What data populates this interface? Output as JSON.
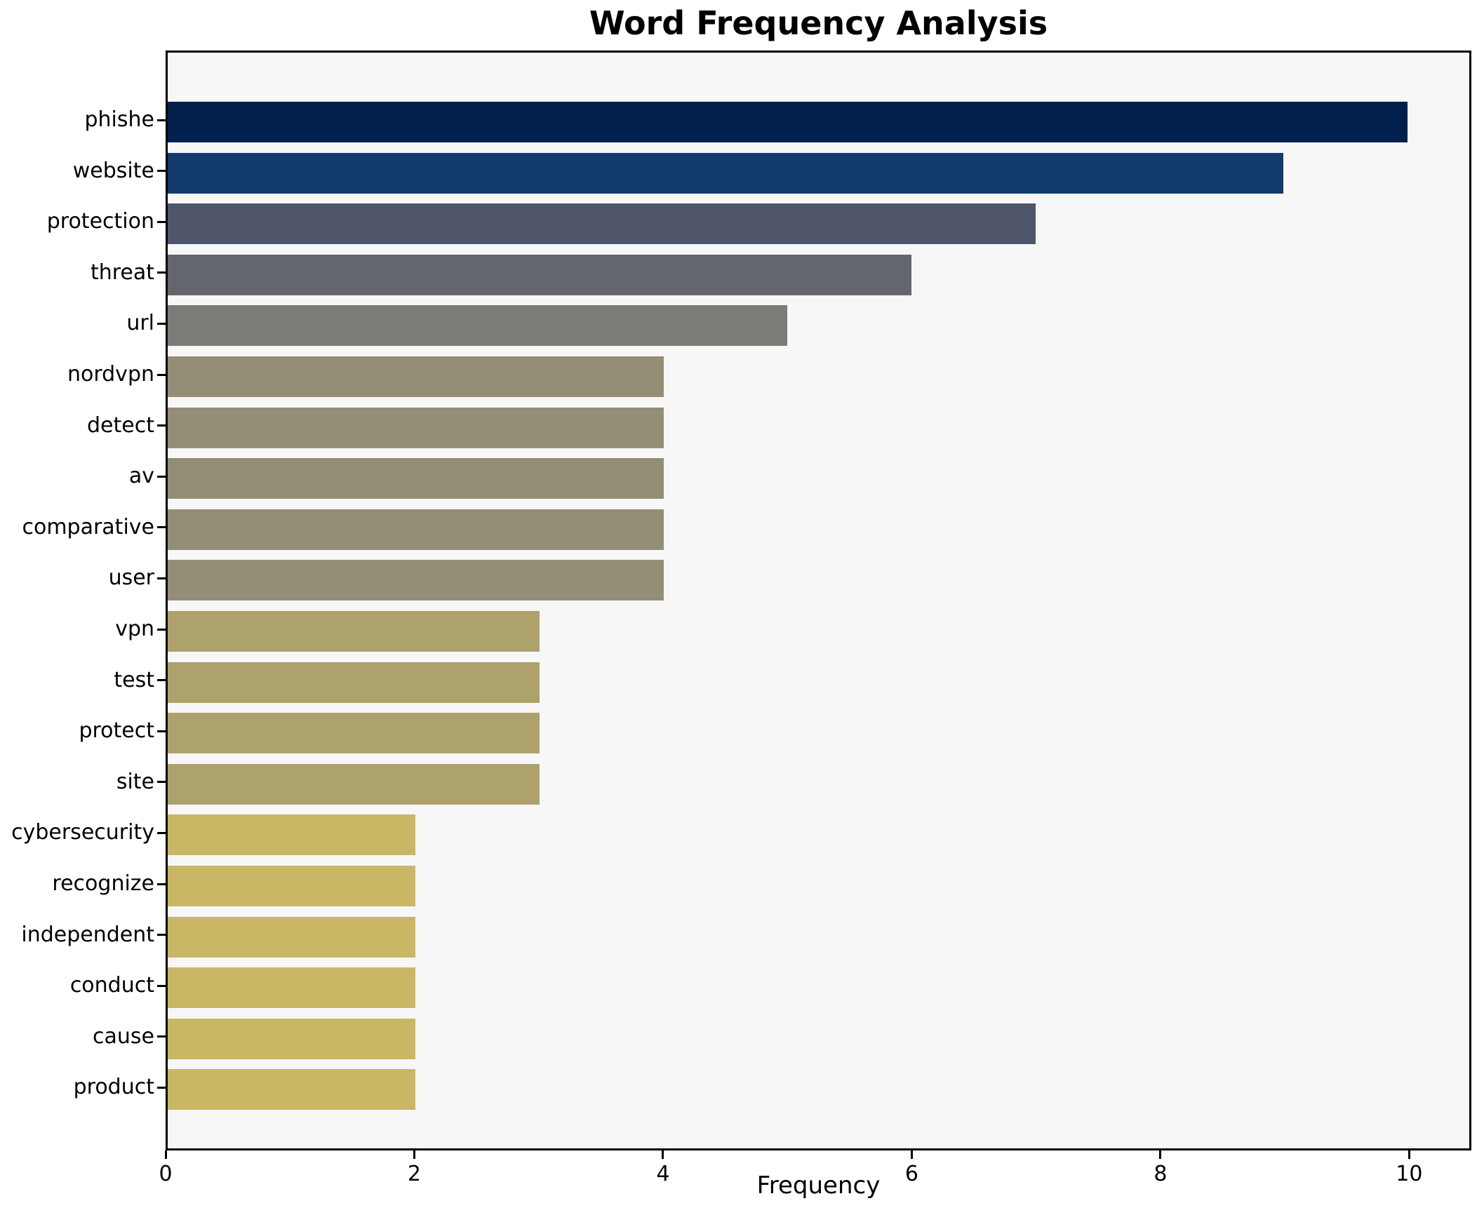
{
  "title": "Word Frequency Analysis",
  "xlabel": "Frequency",
  "chart_data": {
    "type": "bar",
    "orientation": "horizontal",
    "title": "Word Frequency Analysis",
    "xlabel": "Frequency",
    "ylabel": "",
    "xlim": [
      0,
      10.5
    ],
    "xticks": [
      0,
      2,
      4,
      6,
      8,
      10
    ],
    "grid": false,
    "legend": false,
    "plot_background": "#f7f7f8",
    "figure_background": "#ffffff",
    "categories": [
      "phishe",
      "website",
      "protection",
      "threat",
      "url",
      "nordvpn",
      "detect",
      "av",
      "comparative",
      "user",
      "vpn",
      "test",
      "protect",
      "site",
      "cybersecurity",
      "recognize",
      "independent",
      "conduct",
      "cause",
      "product"
    ],
    "values": [
      10,
      9,
      7,
      6,
      5,
      4,
      4,
      4,
      4,
      4,
      3,
      3,
      3,
      3,
      2,
      2,
      2,
      2,
      2,
      2
    ],
    "bar_colors": [
      "#01204d",
      "#123a6d",
      "#4f566c",
      "#64666e",
      "#7b7b77",
      "#938e75",
      "#938e75",
      "#938e75",
      "#938e75",
      "#938e75",
      "#ada26b",
      "#ada26b",
      "#ada26b",
      "#ada26b",
      "#c9b765",
      "#c9b765",
      "#c9b765",
      "#c9b765",
      "#c9b765",
      "#c9b765"
    ]
  }
}
